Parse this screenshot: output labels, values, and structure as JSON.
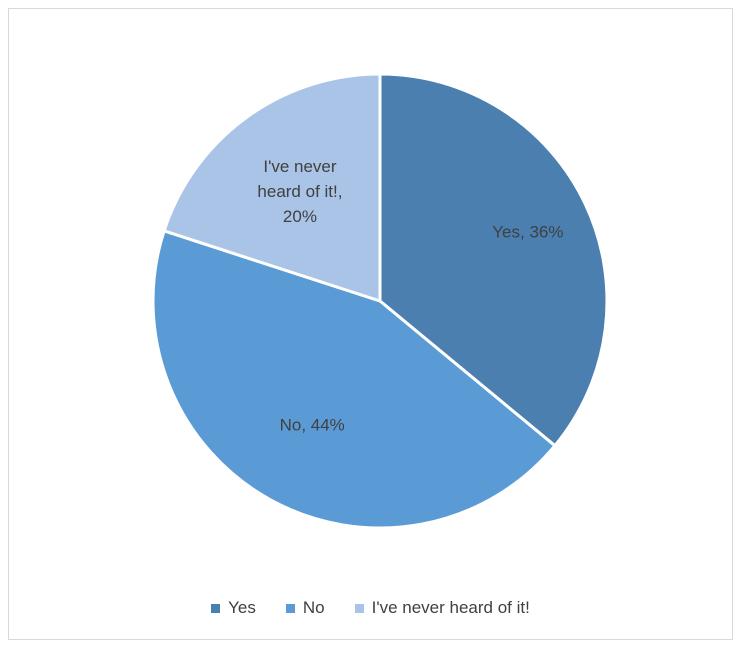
{
  "chart_data": {
    "type": "pie",
    "title": "",
    "categories": [
      "Yes",
      "No",
      "I've never heard of it!"
    ],
    "values": [
      36,
      44,
      20
    ],
    "unit": "%",
    "colors": [
      "#4a7fb0",
      "#5b9bd5",
      "#a9c4e6"
    ],
    "data_labels": [
      [
        "Yes, 36%"
      ],
      [
        "No, 44%"
      ],
      [
        "I've never",
        "heard of it!,",
        "20%"
      ]
    ],
    "legend": {
      "position": "bottom",
      "entries": [
        "Yes",
        "No",
        "I've never heard of it!"
      ]
    }
  }
}
